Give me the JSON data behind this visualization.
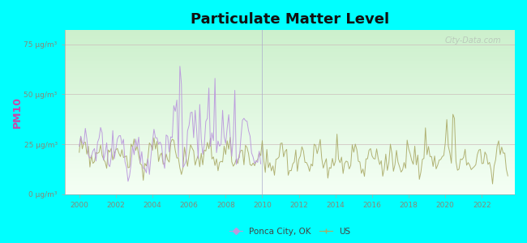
{
  "title": "Particulate Matter Level",
  "ylabel": "PM10",
  "background_color": "#00FFFF",
  "title_fontsize": 13,
  "ylabel_color": "#cc44aa",
  "tick_label_color": "#888877",
  "yticks": [
    0,
    25,
    50,
    75
  ],
  "ytick_labels": [
    "0 μg/m³",
    "25 μg/m³",
    "50 μg/m³",
    "75 μg/m³"
  ],
  "xlim": [
    1999.2,
    2023.8
  ],
  "ylim": [
    0,
    82
  ],
  "ponca_color": "#bb99dd",
  "us_color": "#aaaa66",
  "watermark": "City-Data.com",
  "legend_ponca": "Ponca City, OK",
  "legend_us": "US",
  "ponca_end_year": 2010,
  "grid_color": "#ddcccc",
  "plot_bg_top": "#f5fffa",
  "plot_bg_bottom": "#d4f0d4"
}
